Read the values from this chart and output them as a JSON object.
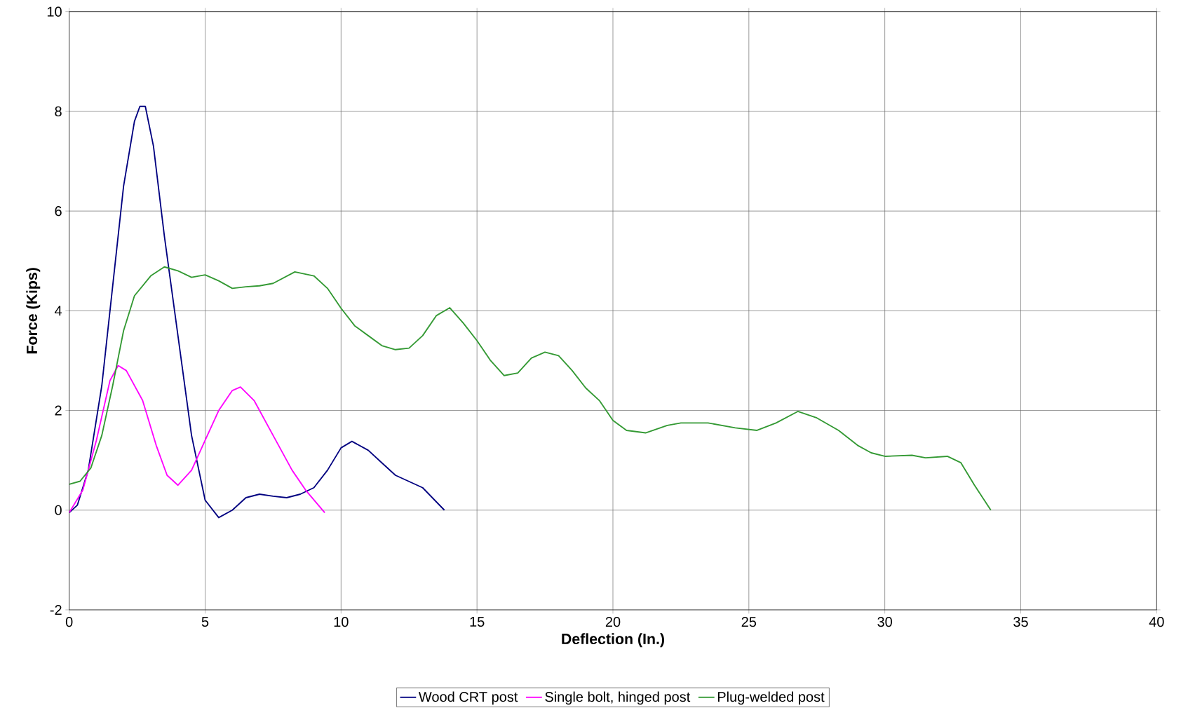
{
  "chart_data": {
    "type": "line",
    "xlabel": "Deflection (In.)",
    "ylabel": "Force (Kips)",
    "xlim": [
      0,
      40
    ],
    "ylim": [
      -2,
      10
    ],
    "xticks": [
      0,
      5,
      10,
      15,
      20,
      25,
      30,
      35,
      40
    ],
    "yticks": [
      -2,
      0,
      2,
      4,
      6,
      8,
      10
    ],
    "grid": true,
    "legend": "bottom",
    "marker": "none",
    "line_style": "solid",
    "series": [
      {
        "name": "Wood CRT post",
        "color": "#000080",
        "x": [
          0,
          0.3,
          0.7,
          1.2,
          1.6,
          2.0,
          2.4,
          2.6,
          2.8,
          3.1,
          3.5,
          4.0,
          4.5,
          5.0,
          5.5,
          6.0,
          6.5,
          7.0,
          7.5,
          8.0,
          8.5,
          9.0,
          9.5,
          10.0,
          10.4,
          11,
          11.5,
          12,
          13,
          13.8
        ],
        "values": [
          -0.05,
          0.1,
          0.8,
          2.5,
          4.5,
          6.5,
          7.8,
          8.1,
          8.1,
          7.3,
          5.5,
          3.5,
          1.5,
          0.2,
          -0.15,
          0.0,
          0.25,
          0.32,
          0.28,
          0.25,
          0.32,
          0.45,
          0.8,
          1.25,
          1.38,
          1.2,
          0.95,
          0.7,
          0.45,
          0.0
        ]
      },
      {
        "name": "Single bolt, hinged post",
        "color": "#ff00ff",
        "x": [
          0,
          0.5,
          1.0,
          1.5,
          1.8,
          2.1,
          2.7,
          3.2,
          3.6,
          4.0,
          4.5,
          5.0,
          5.5,
          6.0,
          6.3,
          6.8,
          7.5,
          8.2,
          8.7,
          9.4
        ],
        "values": [
          -0.05,
          0.4,
          1.4,
          2.6,
          2.9,
          2.8,
          2.2,
          1.3,
          0.7,
          0.5,
          0.8,
          1.4,
          2.0,
          2.4,
          2.47,
          2.2,
          1.5,
          0.8,
          0.4,
          -0.05
        ]
      },
      {
        "name": "Plug-welded post",
        "color": "#339933",
        "x": [
          0,
          0.4,
          0.8,
          1.2,
          1.6,
          2.0,
          2.4,
          3.0,
          3.5,
          4.0,
          4.5,
          5.0,
          5.5,
          6.0,
          6.5,
          7.0,
          7.5,
          8.3,
          9.0,
          9.5,
          10.0,
          10.5,
          11.0,
          11.5,
          12.0,
          12.5,
          13.0,
          13.5,
          14.0,
          14.5,
          15.0,
          15.5,
          16.0,
          16.5,
          17.0,
          17.5,
          18.0,
          18.5,
          19.0,
          19.5,
          20.0,
          20.5,
          21.2,
          22.0,
          22.5,
          23.5,
          24.5,
          25.3,
          26.0,
          26.8,
          27.5,
          28.3,
          29.0,
          29.5,
          30.0,
          31.0,
          31.5,
          32.3,
          32.8,
          33.3,
          33.9
        ],
        "values": [
          0.52,
          0.58,
          0.85,
          1.5,
          2.5,
          3.6,
          4.3,
          4.7,
          4.88,
          4.8,
          4.67,
          4.72,
          4.6,
          4.45,
          4.48,
          4.5,
          4.55,
          4.78,
          4.7,
          4.45,
          4.05,
          3.7,
          3.5,
          3.3,
          3.22,
          3.25,
          3.5,
          3.9,
          4.06,
          3.75,
          3.4,
          3.0,
          2.7,
          2.75,
          3.05,
          3.17,
          3.1,
          2.8,
          2.45,
          2.2,
          1.8,
          1.6,
          1.55,
          1.7,
          1.75,
          1.75,
          1.65,
          1.6,
          1.75,
          1.98,
          1.85,
          1.6,
          1.3,
          1.15,
          1.08,
          1.1,
          1.05,
          1.08,
          0.95,
          0.5,
          0.0
        ]
      }
    ]
  }
}
